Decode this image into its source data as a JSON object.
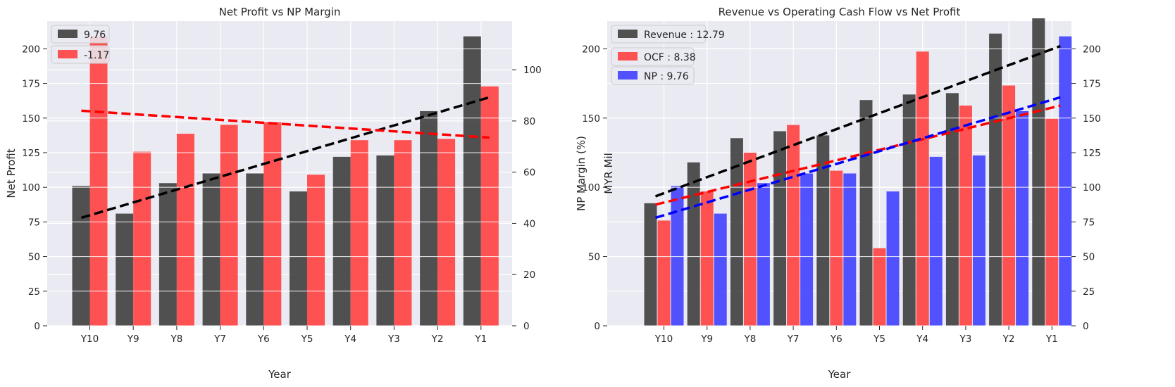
{
  "chart_data": [
    {
      "type": "bar",
      "title": "Net Profit vs NP Margin",
      "xlabel": "Year",
      "ylabel": "Net Profit",
      "y2label": "NP Margin (%)",
      "categories": [
        "Y10",
        "Y9",
        "Y8",
        "Y7",
        "Y6",
        "Y5",
        "Y4",
        "Y3",
        "Y2",
        "Y1"
      ],
      "ylim": [
        0,
        220
      ],
      "y2lim": [
        0,
        119
      ],
      "yticks": [
        0,
        25,
        50,
        75,
        100,
        125,
        150,
        175,
        200
      ],
      "y2ticks": [
        0,
        20,
        40,
        60,
        80,
        100
      ],
      "grid": true,
      "legend_position": "top-left",
      "series": [
        {
          "name": "9.76",
          "axis": "left",
          "color": "#3a3a3a",
          "values": [
            101,
            81,
            103,
            110,
            110,
            97,
            122,
            123,
            155,
            209
          ]
        },
        {
          "name": "-1.17",
          "axis": "right",
          "color": "#ff3b3b",
          "values": [
            113,
            68,
            75,
            78.5,
            79.5,
            59,
            72.5,
            72.5,
            73,
            93.5
          ]
        }
      ],
      "trendlines": [
        {
          "axis": "left",
          "color": "#000000",
          "from": 78,
          "to": 165
        },
        {
          "axis": "right",
          "color": "#ff0000",
          "from": 84,
          "to": 73.5
        }
      ]
    },
    {
      "type": "bar",
      "title": "Revenue vs Operating Cash Flow vs Net Profit",
      "xlabel": "Year",
      "ylabel": "MYR Mil",
      "categories": [
        "Y10",
        "Y9",
        "Y8",
        "Y7",
        "Y6",
        "Y5",
        "Y4",
        "Y3",
        "Y2",
        "Y1"
      ],
      "ylim": [
        0,
        220
      ],
      "y2lim": [
        0,
        220
      ],
      "yticks": [
        0,
        50,
        100,
        150,
        200
      ],
      "y2ticks": [
        0,
        25,
        50,
        75,
        100,
        125,
        150,
        175,
        200
      ],
      "grid": true,
      "legend_position": "top-left",
      "series": [
        {
          "name": "Revenue : 12.79",
          "axis": "left",
          "color": "#3a3a3a",
          "values": [
            88.5,
            118,
            135.5,
            140.5,
            137.5,
            163,
            167,
            168,
            211,
            222
          ]
        },
        {
          "name": "OCF : 8.38",
          "axis": "left",
          "color": "#ff3b3b",
          "values": [
            76,
            97,
            125,
            145,
            112,
            56,
            198,
            159,
            173.5,
            149.5
          ]
        },
        {
          "name": "NP : 9.76",
          "axis": "right",
          "color": "#3b3bff",
          "values": [
            101,
            81,
            103,
            110,
            110,
            97,
            122,
            123,
            155,
            209
          ]
        }
      ],
      "trendlines": [
        {
          "axis": "left",
          "color": "#000000",
          "from": 93.5,
          "to": 202
        },
        {
          "axis": "left",
          "color": "#ff0000",
          "from": 87.5,
          "to": 159
        },
        {
          "axis": "right",
          "color": "#0000ff",
          "from": 78,
          "to": 165
        }
      ]
    }
  ]
}
